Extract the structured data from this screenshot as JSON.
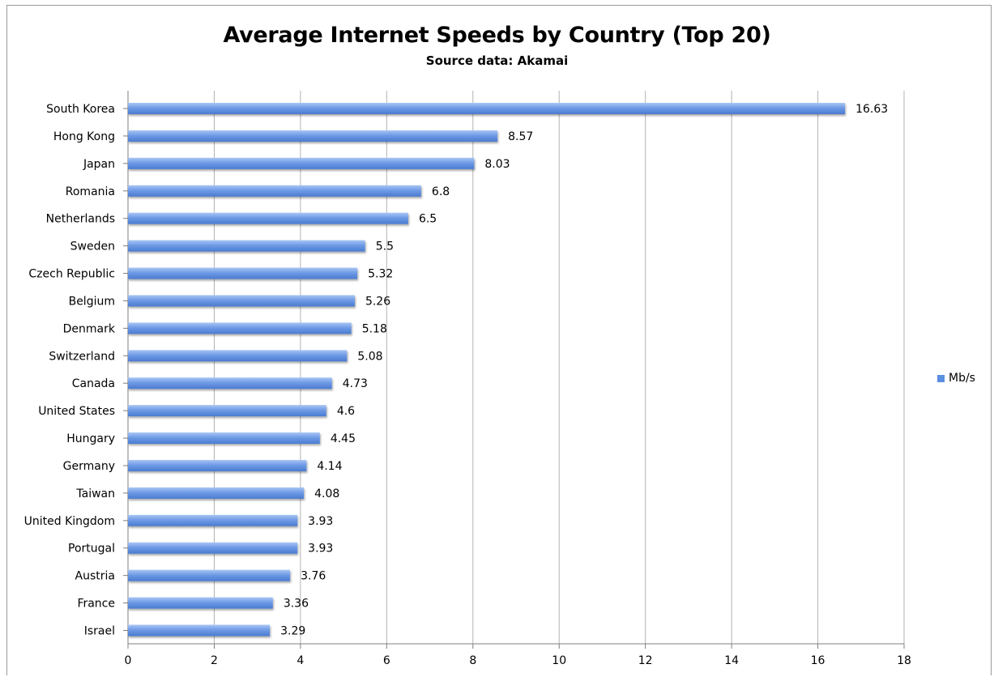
{
  "chart_data": {
    "type": "bar",
    "orientation": "horizontal",
    "title": "Average Internet Speeds by Country (Top 20)",
    "subtitle": "Source data: Akamai",
    "categories": [
      "South Korea",
      "Hong Kong",
      "Japan",
      "Romania",
      "Netherlands",
      "Sweden",
      "Czech Republic",
      "Belgium",
      "Denmark",
      "Switzerland",
      "Canada",
      "United States",
      "Hungary",
      "Germany",
      "Taiwan",
      "United Kingdom",
      "Portugal",
      "Austria",
      "France",
      "Israel"
    ],
    "series": [
      {
        "name": "Mb/s",
        "values": [
          16.63,
          8.57,
          8.03,
          6.8,
          6.5,
          5.5,
          5.32,
          5.26,
          5.18,
          5.08,
          4.73,
          4.6,
          4.45,
          4.14,
          4.08,
          3.93,
          3.93,
          3.76,
          3.36,
          3.29
        ]
      }
    ],
    "data_labels": [
      "16.63",
      "8.57",
      "8.03",
      "6.8",
      "6.5",
      "5.5",
      "5.32",
      "5.26",
      "5.18",
      "5.08",
      "4.73",
      "4.6",
      "4.45",
      "4.14",
      "4.08",
      "3.93",
      "3.93",
      "3.76",
      "3.36",
      "3.29"
    ],
    "xlim": [
      0,
      18
    ],
    "x_ticks": [
      0,
      2,
      4,
      6,
      8,
      10,
      12,
      14,
      16,
      18
    ],
    "grid": true,
    "legend_position": "right",
    "bar_color": "#5b8fe0"
  }
}
